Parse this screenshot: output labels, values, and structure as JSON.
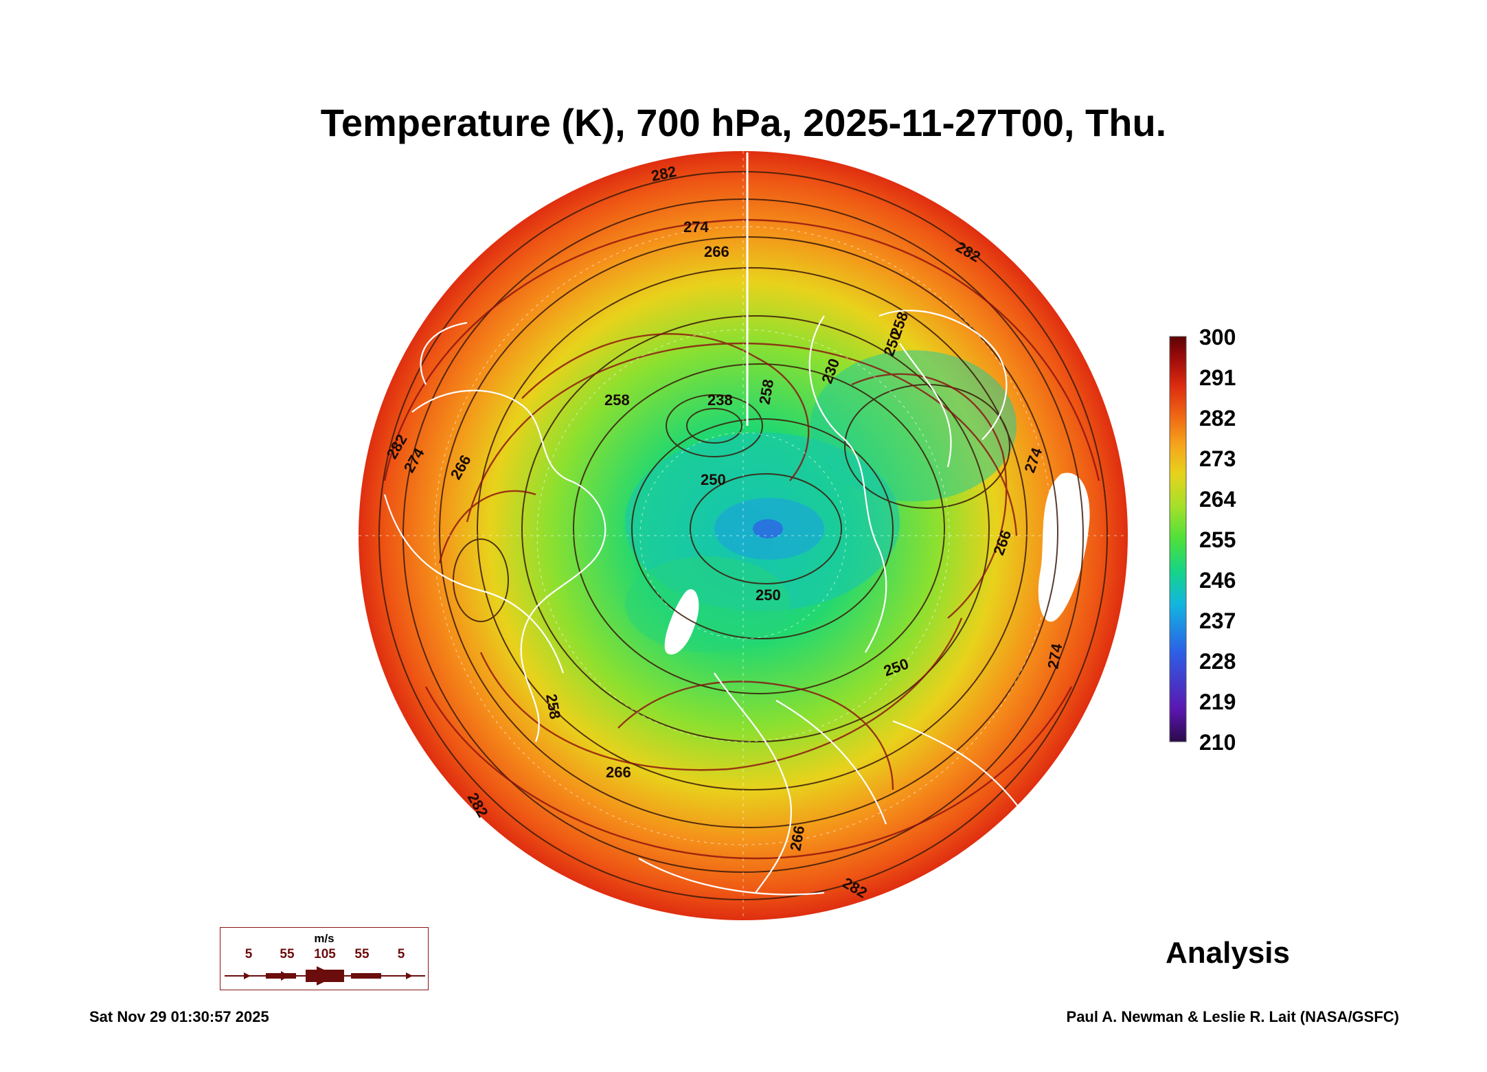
{
  "title": "Temperature (K), 700 hPa, 2025-11-27T00, Thu.",
  "colorbar": {
    "labels": [
      "300",
      "291",
      "282",
      "273",
      "264",
      "255",
      "246",
      "237",
      "228",
      "219",
      "210"
    ],
    "colors": [
      "#2a0b4a",
      "#5b16b0",
      "#2d5fe6",
      "#12b6e0",
      "#15d488",
      "#4de03a",
      "#a4e02a",
      "#e6d21c",
      "#f5a71c",
      "#f06a14",
      "#dc2a10",
      "#9a0a0a",
      "#5c0404"
    ]
  },
  "contour_labels": [
    "282",
    "274",
    "266",
    "258",
    "250",
    "258",
    "250",
    "266",
    "282",
    "274",
    "266",
    "258",
    "282",
    "274",
    "238",
    "266",
    "282",
    "230",
    "250",
    "250",
    "258",
    "274",
    "266",
    "282"
  ],
  "wind_legend": {
    "unit": "m/s",
    "values": [
      "5",
      "55",
      "105",
      "55",
      "5"
    ]
  },
  "label": "Analysis",
  "timestamp": "Sat Nov 29 01:30:57 2025",
  "credit": "Paul A. Newman & Leslie R. Lait (NASA/GSFC)"
}
